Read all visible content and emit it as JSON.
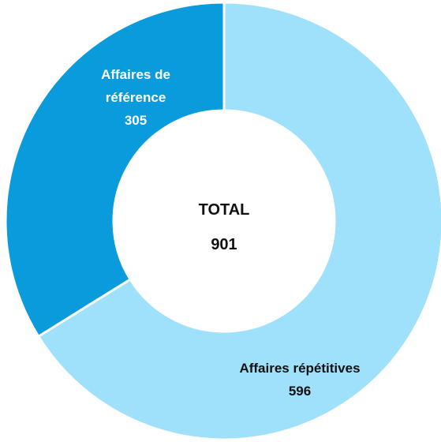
{
  "chart_data": {
    "type": "donut",
    "categories": [
      "Affaires répétitives",
      "Affaires de référence"
    ],
    "values": [
      596,
      305
    ],
    "colors": [
      "#9fe0fb",
      "#0a9bdc"
    ],
    "center_title": "TOTAL",
    "center_value": "901"
  }
}
